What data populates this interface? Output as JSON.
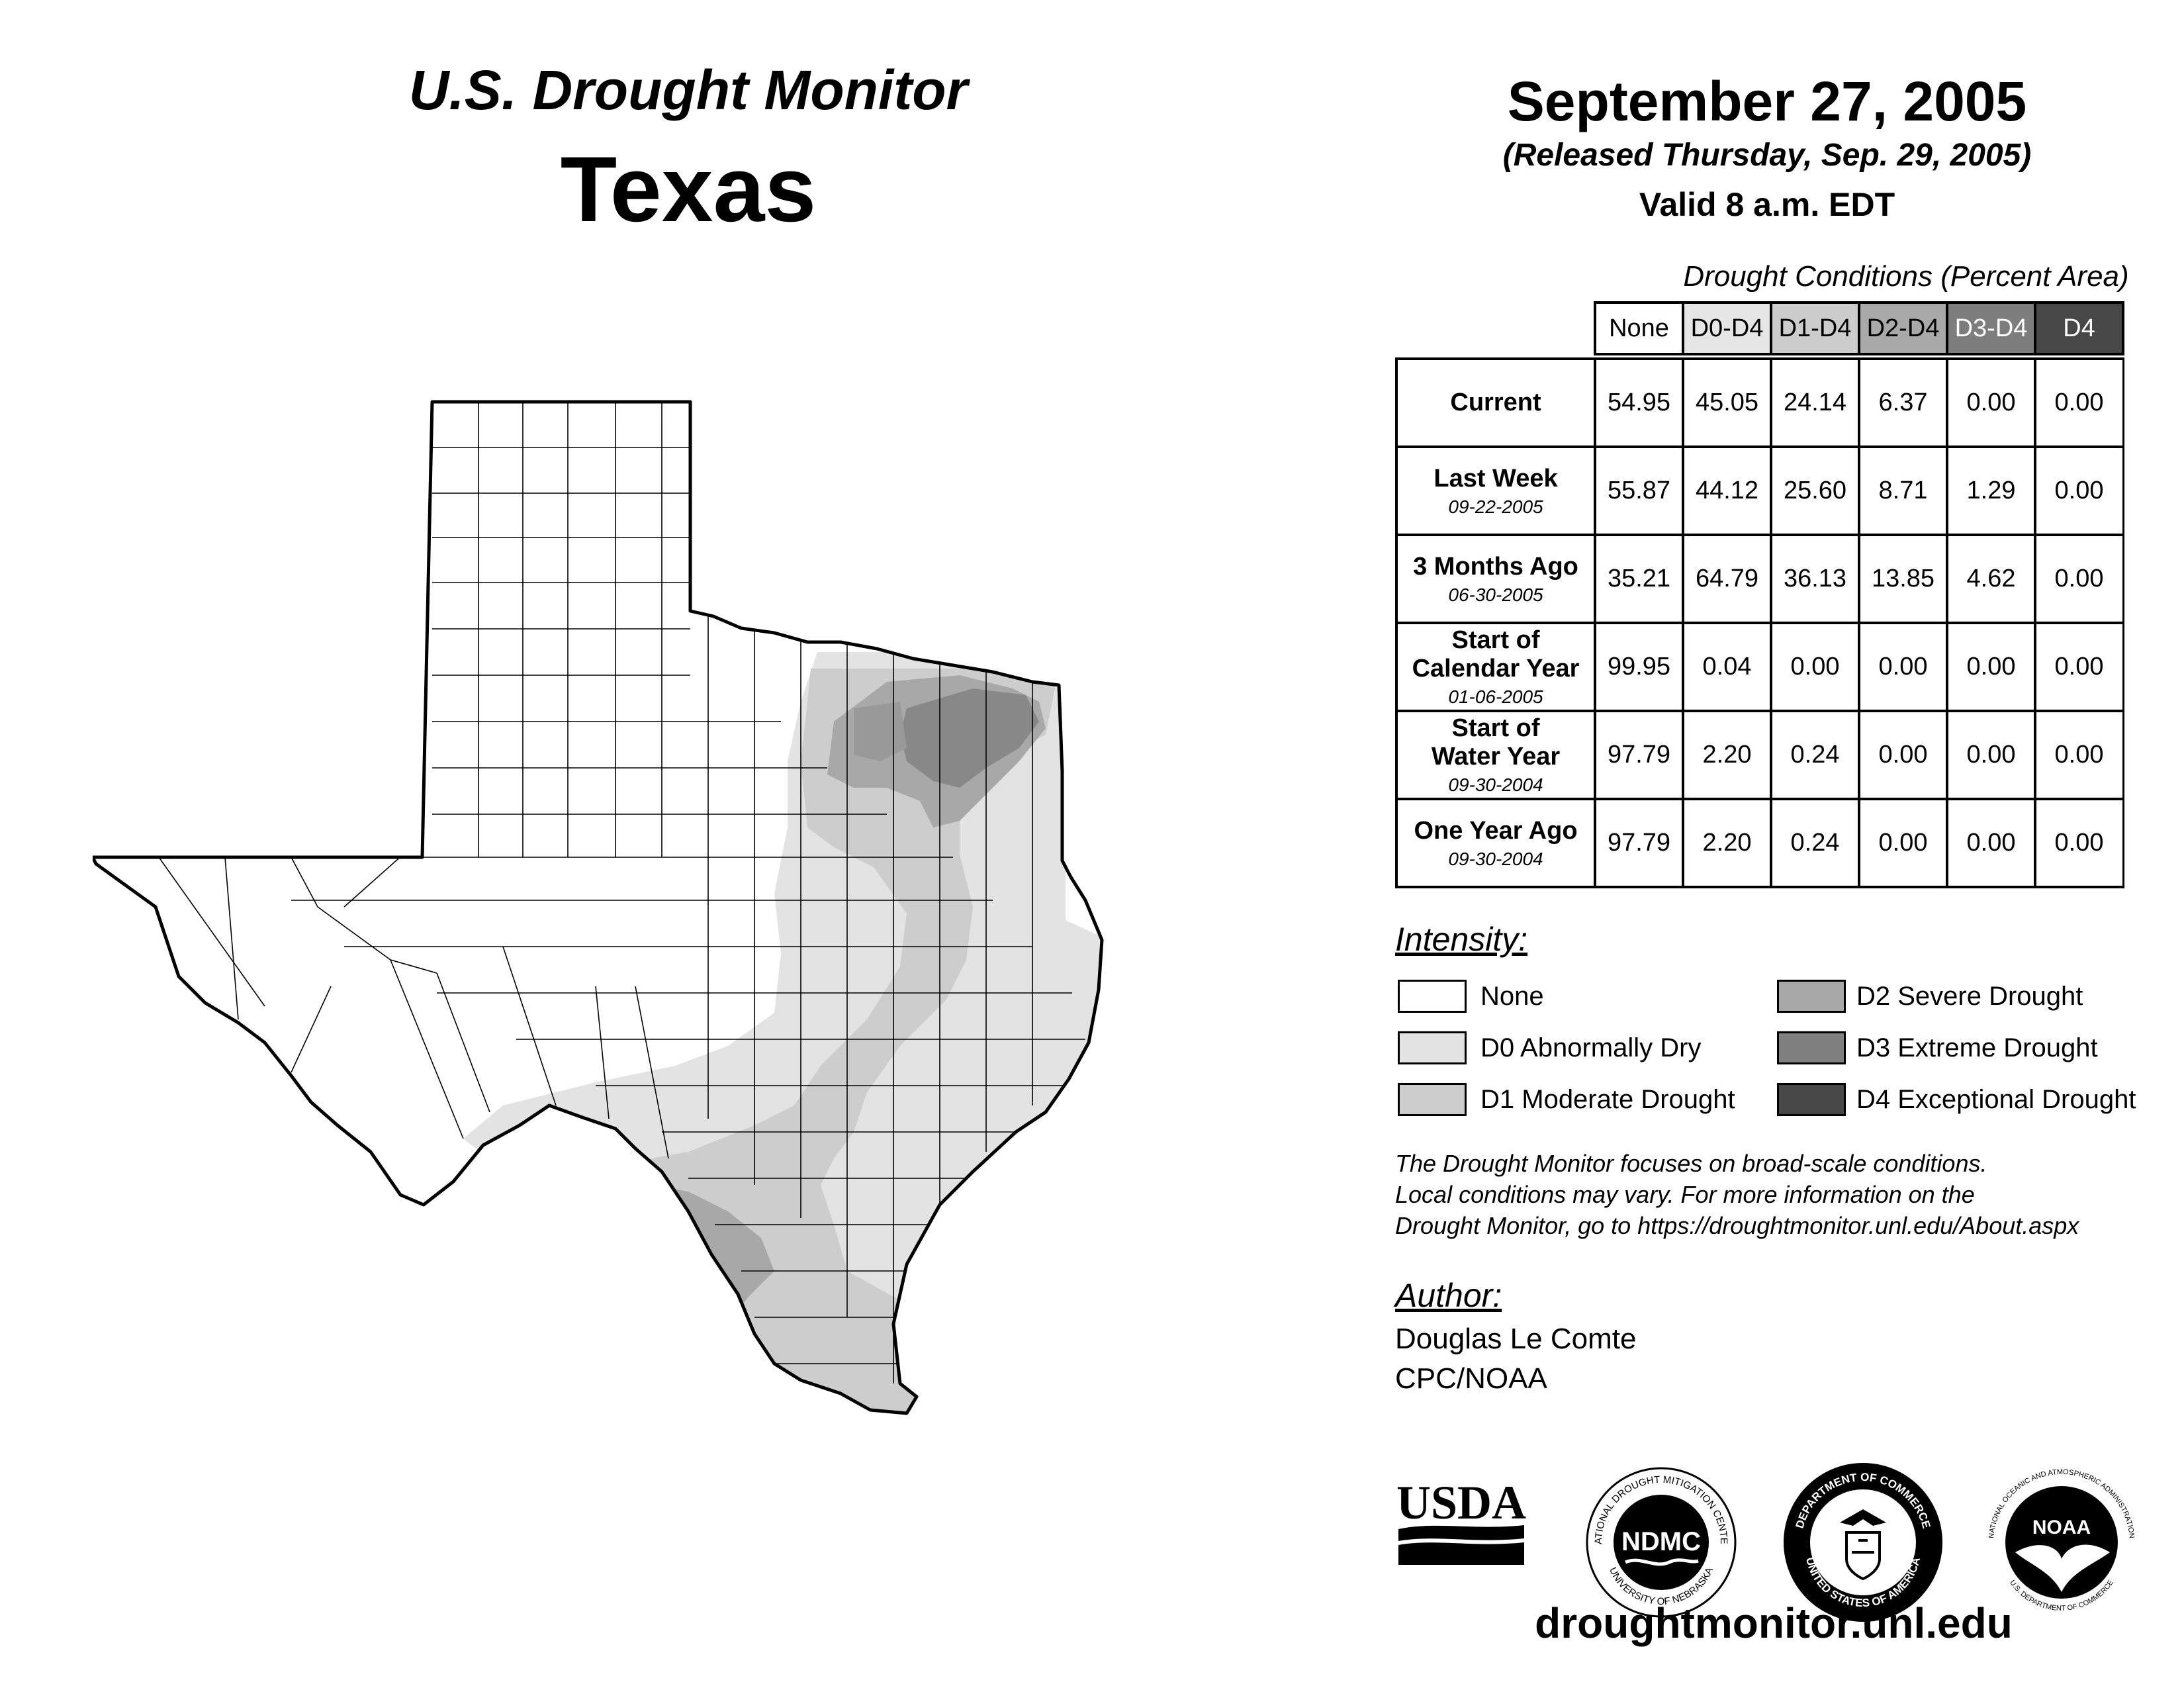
{
  "header": {
    "monitor_title": "U.S. Drought Monitor",
    "state": "Texas",
    "date": "September 27, 2005",
    "released": "(Released Thursday, Sep. 29, 2005)",
    "valid": "Valid 8 a.m. EDT"
  },
  "table": {
    "caption": "Drought Conditions (Percent Area)",
    "columns": [
      {
        "label": "None",
        "bg": "#ffffff",
        "fg": "#000000"
      },
      {
        "label": "D0-D4",
        "bg": "#e6e6e6",
        "fg": "#000000"
      },
      {
        "label": "D1-D4",
        "bg": "#cccccc",
        "fg": "#000000"
      },
      {
        "label": "D2-D4",
        "bg": "#a9a9a9",
        "fg": "#000000"
      },
      {
        "label": "D3-D4",
        "bg": "#7d7d7d",
        "fg": "#ffffff"
      },
      {
        "label": "D4",
        "bg": "#474747",
        "fg": "#ffffff"
      }
    ],
    "rows": [
      {
        "label": "Current",
        "date": "",
        "values": [
          "54.95",
          "45.05",
          "24.14",
          "6.37",
          "0.00",
          "0.00"
        ]
      },
      {
        "label": "Last Week",
        "date": "09-22-2005",
        "values": [
          "55.87",
          "44.12",
          "25.60",
          "8.71",
          "1.29",
          "0.00"
        ]
      },
      {
        "label": "3 Months Ago",
        "date": "06-30-2005",
        "values": [
          "35.21",
          "64.79",
          "36.13",
          "13.85",
          "4.62",
          "0.00"
        ]
      },
      {
        "label": "Start of\nCalendar Year",
        "date": "01-06-2005",
        "values": [
          "99.95",
          "0.04",
          "0.00",
          "0.00",
          "0.00",
          "0.00"
        ]
      },
      {
        "label": "Start of\nWater Year",
        "date": "09-30-2004",
        "values": [
          "97.79",
          "2.20",
          "0.24",
          "0.00",
          "0.00",
          "0.00"
        ]
      },
      {
        "label": "One Year Ago",
        "date": "09-30-2004",
        "values": [
          "97.79",
          "2.20",
          "0.24",
          "0.00",
          "0.00",
          "0.00"
        ]
      }
    ]
  },
  "legend": {
    "title": "Intensity:",
    "items": [
      {
        "label": "None",
        "color": "#ffffff"
      },
      {
        "label": "D0 Abnormally Dry",
        "color": "#e3e3e3"
      },
      {
        "label": "D1 Moderate Drought",
        "color": "#cdcdcd"
      },
      {
        "label": "D2 Severe Drought",
        "color": "#a8a8a8"
      },
      {
        "label": "D3 Extreme Drought",
        "color": "#7f7f7f"
      },
      {
        "label": "D4 Exceptional Drought",
        "color": "#474747"
      }
    ]
  },
  "disclaimer": [
    "The Drought Monitor focuses on broad-scale conditions.",
    "Local conditions may vary. For more information on the",
    "Drought Monitor, go to https://droughtmonitor.unl.edu/About.aspx"
  ],
  "author": {
    "title": "Author:",
    "name": "Douglas Le Comte",
    "org": "CPC/NOAA"
  },
  "logos": {
    "usda": "USDA",
    "ndmc": "NDMC",
    "ndmc_ring_top": "NATIONAL DROUGHT MITIGATION CENTER",
    "ndmc_ring_bottom": "UNIVERSITY OF NEBRASKA",
    "doc_ring_top": "DEPARTMENT OF COMMERCE",
    "doc_ring_bottom": "UNITED STATES OF AMERICA",
    "noaa": "NOAA",
    "noaa_ring_top": "NATIONAL OCEANIC AND ATMOSPHERIC ADMINISTRATION",
    "noaa_ring_bottom": "U.S. DEPARTMENT OF COMMERCE"
  },
  "footer": {
    "url": "droughtmonitor.unl.edu"
  },
  "map": {
    "region": "Texas",
    "icons": [
      "texas-county-map"
    ]
  }
}
